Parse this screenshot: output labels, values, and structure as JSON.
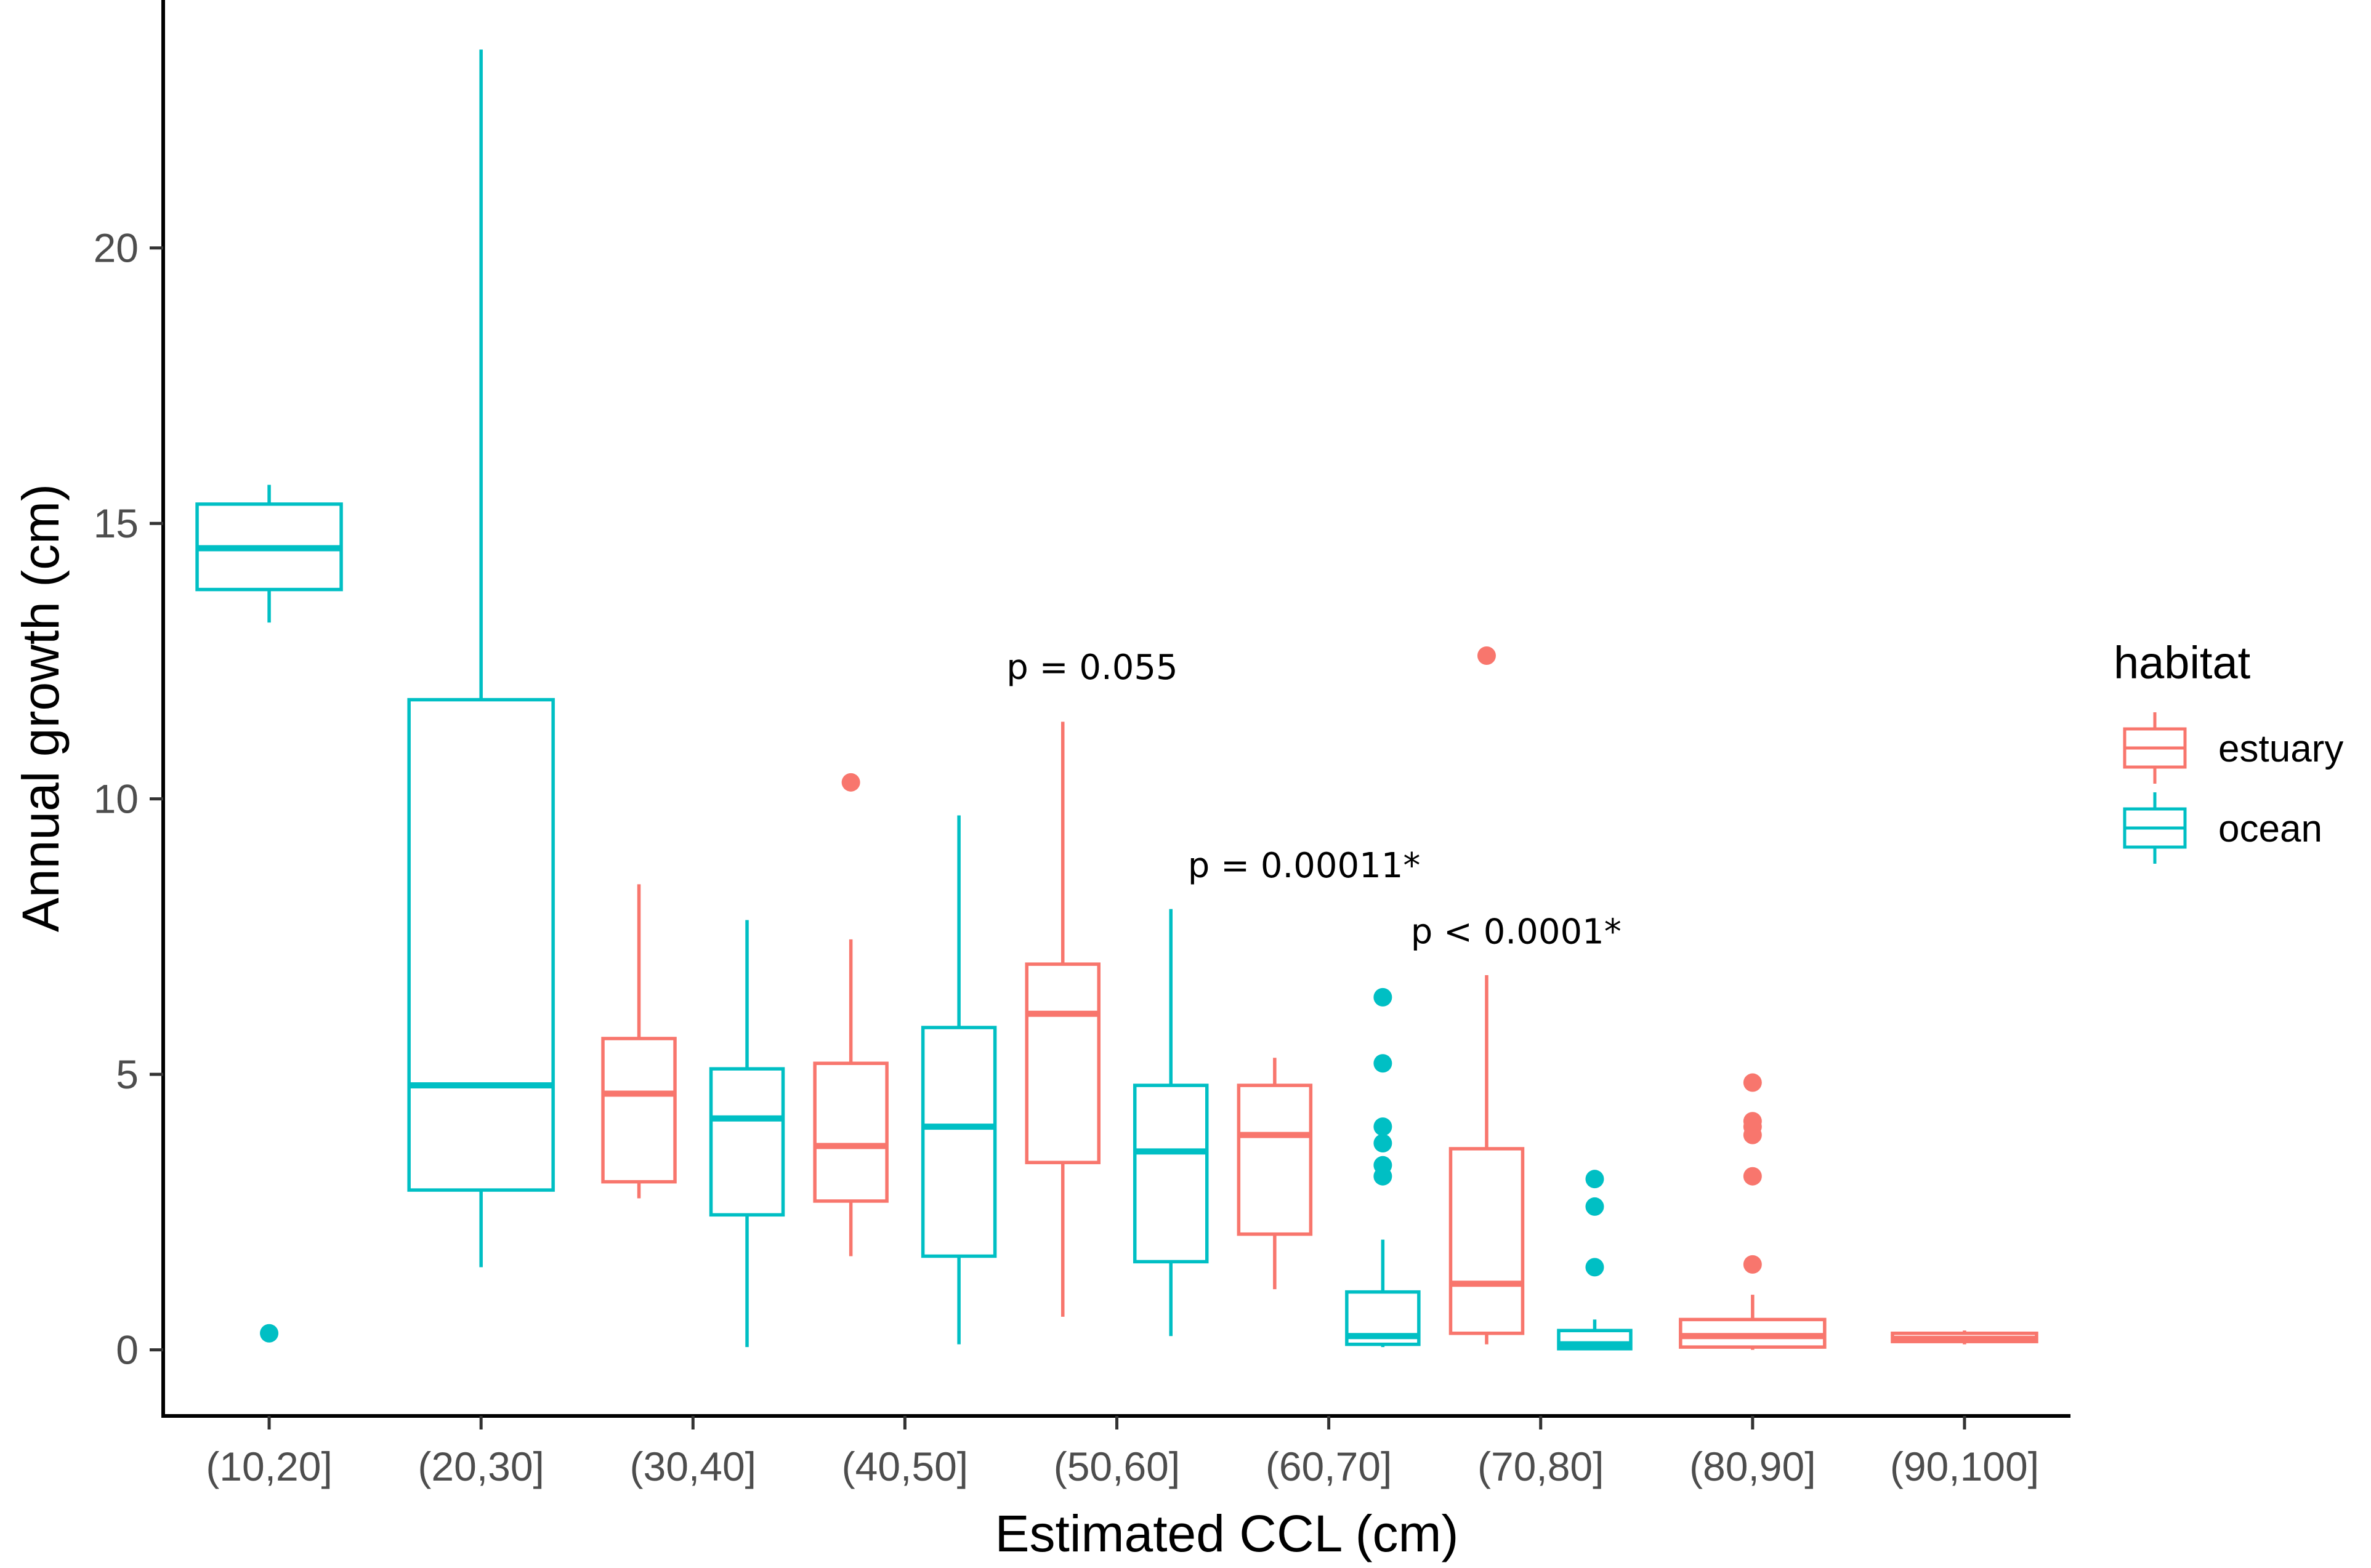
{
  "chart_data": {
    "type": "boxplot",
    "xlabel": "Estimated CCL (cm)",
    "ylabel": "Annual growth (cm)",
    "ylim": [
      -1.2,
      24.5
    ],
    "yticks": [
      0,
      5,
      10,
      15,
      20
    ],
    "categories": [
      "(10,20]",
      "(20,30]",
      "(30,40]",
      "(40,50]",
      "(50,60]",
      "(60,70]",
      "(70,80]",
      "(80,90]",
      "(90,100]"
    ],
    "legend": {
      "title": "habitat",
      "entries": [
        {
          "name": "estuary",
          "color": "#F8766D"
        },
        {
          "name": "ocean",
          "color": "#00BFC4"
        }
      ]
    },
    "series": [
      {
        "name": "estuary",
        "color": "#F8766D",
        "boxes": [
          {
            "category": "(30,40]",
            "min": 2.75,
            "q1": 3.05,
            "median": 4.65,
            "q3": 5.65,
            "max": 8.45,
            "outliers": []
          },
          {
            "category": "(40,50]",
            "min": 1.7,
            "q1": 2.7,
            "median": 3.7,
            "q3": 5.2,
            "max": 7.45,
            "outliers": [
              10.3
            ]
          },
          {
            "category": "(50,60]",
            "min": 0.6,
            "q1": 3.4,
            "median": 6.1,
            "q3": 7.0,
            "max": 11.4,
            "outliers": []
          },
          {
            "category": "(60,70]",
            "min": 1.1,
            "q1": 2.1,
            "median": 3.9,
            "q3": 4.8,
            "max": 5.3,
            "outliers": []
          },
          {
            "category": "(70,80]",
            "min": 0.1,
            "q1": 0.3,
            "median": 1.2,
            "q3": 3.65,
            "max": 6.8,
            "outliers": [
              12.6
            ]
          },
          {
            "category": "(80,90]",
            "min": 0.0,
            "q1": 0.05,
            "median": 0.25,
            "q3": 0.55,
            "max": 1.0,
            "outliers": [
              1.55,
              3.15,
              3.9,
              4.05,
              4.15,
              4.85
            ]
          },
          {
            "category": "(90,100]",
            "min": 0.1,
            "q1": 0.15,
            "median": 0.2,
            "q3": 0.3,
            "max": 0.35,
            "outliers": []
          }
        ]
      },
      {
        "name": "ocean",
        "color": "#00BFC4",
        "boxes": [
          {
            "category": "(10,20]",
            "min": 13.2,
            "q1": 13.8,
            "median": 14.55,
            "q3": 15.35,
            "max": 15.7,
            "outliers": [
              0.3
            ]
          },
          {
            "category": "(20,30]",
            "min": 1.5,
            "q1": 2.9,
            "median": 4.8,
            "q3": 11.8,
            "max": 23.6,
            "outliers": []
          },
          {
            "category": "(30,40]",
            "min": 0.05,
            "q1": 2.45,
            "median": 4.2,
            "q3": 5.1,
            "max": 7.8,
            "outliers": []
          },
          {
            "category": "(40,50]",
            "min": 0.1,
            "q1": 1.7,
            "median": 4.05,
            "q3": 5.85,
            "max": 9.7,
            "outliers": []
          },
          {
            "category": "(50,60]",
            "min": 0.25,
            "q1": 1.6,
            "median": 3.6,
            "q3": 4.8,
            "max": 8.0,
            "outliers": []
          },
          {
            "category": "(60,70]",
            "min": 0.05,
            "q1": 0.1,
            "median": 0.25,
            "q3": 1.05,
            "max": 2.0,
            "outliers": [
              3.15,
              3.35,
              3.75,
              4.05,
              5.2,
              6.4
            ]
          },
          {
            "category": "(70,80]",
            "min": 0.0,
            "q1": 0.02,
            "median": 0.1,
            "q3": 0.35,
            "max": 0.55,
            "outliers": [
              1.5,
              2.6,
              3.1
            ]
          }
        ]
      }
    ],
    "annotations": [
      {
        "text": "p = 0.055",
        "category": "(50,60]",
        "y": 12.4
      },
      {
        "text": "p = 0.00011*",
        "category": "(60,70]",
        "y": 8.8
      },
      {
        "text": "p < 0.0001*",
        "category": "(70,80]",
        "y": 7.6
      }
    ]
  }
}
